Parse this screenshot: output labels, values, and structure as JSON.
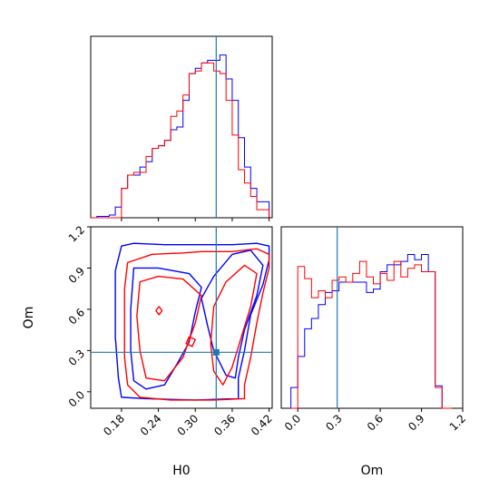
{
  "colors": {
    "series_a": "#ff0000",
    "series_b": "#0000ff",
    "truth": "#1f77b4"
  },
  "chart_data": [
    {
      "type": "histogram",
      "panel": "top-left",
      "xlabel": "",
      "ylabel": "",
      "xlim": [
        0.13,
        0.425
      ],
      "ylim": [
        0,
        6.8
      ],
      "y_ticks_shown": false,
      "truth_x": 0.334,
      "bin_edges": [
        0.13,
        0.14,
        0.15,
        0.16,
        0.17,
        0.18,
        0.19,
        0.2,
        0.21,
        0.22,
        0.23,
        0.24,
        0.25,
        0.26,
        0.27,
        0.28,
        0.29,
        0.3,
        0.31,
        0.32,
        0.33,
        0.34,
        0.35,
        0.36,
        0.37,
        0.38,
        0.39,
        0.4,
        0.41,
        0.42
      ],
      "series": [
        {
          "color_key": "series_b",
          "counts": [
            0.0,
            0.05,
            0.05,
            0.1,
            0.4,
            1.1,
            1.6,
            1.6,
            1.9,
            2.1,
            2.6,
            2.7,
            2.9,
            3.3,
            3.4,
            4.4,
            5.4,
            5.6,
            5.8,
            5.9,
            5.9,
            6.1,
            5.2,
            4.4,
            3.0,
            1.9,
            1.1,
            0.6,
            0.6
          ]
        },
        {
          "color_key": "series_a",
          "counts": [
            0.0,
            0.0,
            0.0,
            0.0,
            0.0,
            1.1,
            1.6,
            1.7,
            1.7,
            2.3,
            2.6,
            2.7,
            2.9,
            3.8,
            4.0,
            4.6,
            5.4,
            5.5,
            5.8,
            5.8,
            5.5,
            5.4,
            4.4,
            3.1,
            1.8,
            1.3,
            0.8,
            0.3,
            0.3
          ]
        }
      ]
    },
    {
      "type": "contour",
      "panel": "bottom-left",
      "xlabel": "H0",
      "ylabel": "Om",
      "xlim": [
        0.13,
        0.425
      ],
      "ylim": [
        -0.12,
        1.2
      ],
      "x_ticks": [
        "0.18",
        "0.24",
        "0.30",
        "0.36",
        "0.42"
      ],
      "y_ticks": [
        "0.0",
        "0.3",
        "0.6",
        "0.9",
        "1.2"
      ],
      "truth": {
        "x": 0.334,
        "y": 0.287
      },
      "series": [
        {
          "color_key": "series_b",
          "contours": [
            [
              [
                0.18,
                1.06
              ],
              [
                0.2,
                1.08
              ],
              [
                0.25,
                1.07
              ],
              [
                0.31,
                1.07
              ],
              [
                0.36,
                1.07
              ],
              [
                0.4,
                1.08
              ],
              [
                0.42,
                1.06
              ],
              [
                0.42,
                0.96
              ],
              [
                0.41,
                0.78
              ],
              [
                0.39,
                0.56
              ],
              [
                0.38,
                0.3
              ],
              [
                0.37,
                0.1
              ],
              [
                0.37,
                -0.05
              ],
              [
                0.3,
                -0.06
              ],
              [
                0.22,
                -0.05
              ],
              [
                0.18,
                -0.04
              ],
              [
                0.175,
                0.1
              ],
              [
                0.17,
                0.4
              ],
              [
                0.17,
                0.65
              ],
              [
                0.17,
                0.88
              ],
              [
                0.18,
                1.06
              ]
            ],
            [
              [
                0.2,
                0.9
              ],
              [
                0.24,
                0.9
              ],
              [
                0.29,
                0.86
              ],
              [
                0.31,
                0.76
              ],
              [
                0.3,
                0.58
              ],
              [
                0.29,
                0.36
              ],
              [
                0.27,
                0.2
              ],
              [
                0.25,
                0.05
              ],
              [
                0.22,
                0.02
              ],
              [
                0.2,
                0.08
              ],
              [
                0.195,
                0.3
              ],
              [
                0.195,
                0.6
              ],
              [
                0.2,
                0.9
              ]
            ],
            [
              [
                0.31,
                0.68
              ],
              [
                0.33,
                0.84
              ],
              [
                0.36,
                1.0
              ],
              [
                0.39,
                1.03
              ],
              [
                0.41,
                0.92
              ],
              [
                0.4,
                0.7
              ],
              [
                0.38,
                0.45
              ],
              [
                0.37,
                0.25
              ],
              [
                0.365,
                0.1
              ],
              [
                0.35,
                0.12
              ],
              [
                0.33,
                0.3
              ],
              [
                0.32,
                0.48
              ],
              [
                0.31,
                0.68
              ]
            ]
          ]
        },
        {
          "color_key": "series_a",
          "contours": [
            [
              [
                0.19,
                0.94
              ],
              [
                0.23,
                1.0
              ],
              [
                0.28,
                1.01
              ],
              [
                0.31,
                1.02
              ],
              [
                0.36,
                1.02
              ],
              [
                0.4,
                1.04
              ],
              [
                0.42,
                1.0
              ],
              [
                0.42,
                0.9
              ],
              [
                0.41,
                0.72
              ],
              [
                0.4,
                0.5
              ],
              [
                0.39,
                0.25
              ],
              [
                0.38,
                0.05
              ],
              [
                0.38,
                -0.05
              ],
              [
                0.33,
                -0.06
              ],
              [
                0.26,
                -0.06
              ],
              [
                0.21,
                -0.04
              ],
              [
                0.19,
                0.05
              ],
              [
                0.185,
                0.25
              ],
              [
                0.185,
                0.5
              ],
              [
                0.185,
                0.75
              ],
              [
                0.19,
                0.94
              ]
            ],
            [
              [
                0.21,
                0.8
              ],
              [
                0.24,
                0.84
              ],
              [
                0.28,
                0.82
              ],
              [
                0.31,
                0.7
              ],
              [
                0.3,
                0.5
              ],
              [
                0.28,
                0.25
              ],
              [
                0.25,
                0.08
              ],
              [
                0.22,
                0.1
              ],
              [
                0.21,
                0.3
              ],
              [
                0.205,
                0.55
              ],
              [
                0.21,
                0.8
              ]
            ],
            [
              [
                0.33,
                0.62
              ],
              [
                0.35,
                0.8
              ],
              [
                0.38,
                0.92
              ],
              [
                0.4,
                0.86
              ],
              [
                0.39,
                0.62
              ],
              [
                0.375,
                0.4
              ],
              [
                0.36,
                0.18
              ],
              [
                0.345,
                0.05
              ],
              [
                0.33,
                0.15
              ],
              [
                0.325,
                0.35
              ],
              [
                0.33,
                0.62
              ]
            ],
            [
              [
                0.241,
                0.62
              ],
              [
                0.246,
                0.59
              ],
              [
                0.241,
                0.56
              ],
              [
                0.236,
                0.59
              ],
              [
                0.241,
                0.62
              ]
            ],
            [
              [
                0.29,
                0.4
              ],
              [
                0.3,
                0.38
              ],
              [
                0.295,
                0.33
              ],
              [
                0.285,
                0.35
              ],
              [
                0.29,
                0.4
              ]
            ]
          ]
        }
      ]
    },
    {
      "type": "histogram",
      "panel": "bottom-right",
      "xlabel": "Om",
      "ylabel": "",
      "xlim": [
        -0.12,
        1.2
      ],
      "ylim": [
        0,
        10.5
      ],
      "x_ticks": [
        "0.0",
        "0.3",
        "0.6",
        "0.9",
        "1.2"
      ],
      "y_ticks_shown": false,
      "truth_x": 0.287,
      "bin_edges": [
        -0.05,
        0.0,
        0.05,
        0.1,
        0.15,
        0.2,
        0.25,
        0.3,
        0.35,
        0.4,
        0.45,
        0.5,
        0.55,
        0.6,
        0.65,
        0.7,
        0.75,
        0.8,
        0.85,
        0.9,
        0.95,
        1.0,
        1.05,
        1.12
      ],
      "series": [
        {
          "color_key": "series_b",
          "counts": [
            1.2,
            3.0,
            4.6,
            5.2,
            6.0,
            6.7,
            6.8,
            7.3,
            7.3,
            7.3,
            7.3,
            6.7,
            6.9,
            7.9,
            8.3,
            8.3,
            8.5,
            8.9,
            8.6,
            8.9,
            7.9,
            1.3,
            0.0
          ]
        },
        {
          "color_key": "series_a",
          "counts": [
            0.0,
            8.2,
            7.5,
            6.4,
            6.8,
            6.4,
            7.4,
            7.6,
            7.3,
            7.8,
            8.5,
            7.6,
            7.2,
            7.8,
            7.4,
            8.5,
            7.6,
            8.1,
            8.3,
            7.9,
            7.9,
            1.2,
            0.0
          ]
        }
      ]
    }
  ]
}
